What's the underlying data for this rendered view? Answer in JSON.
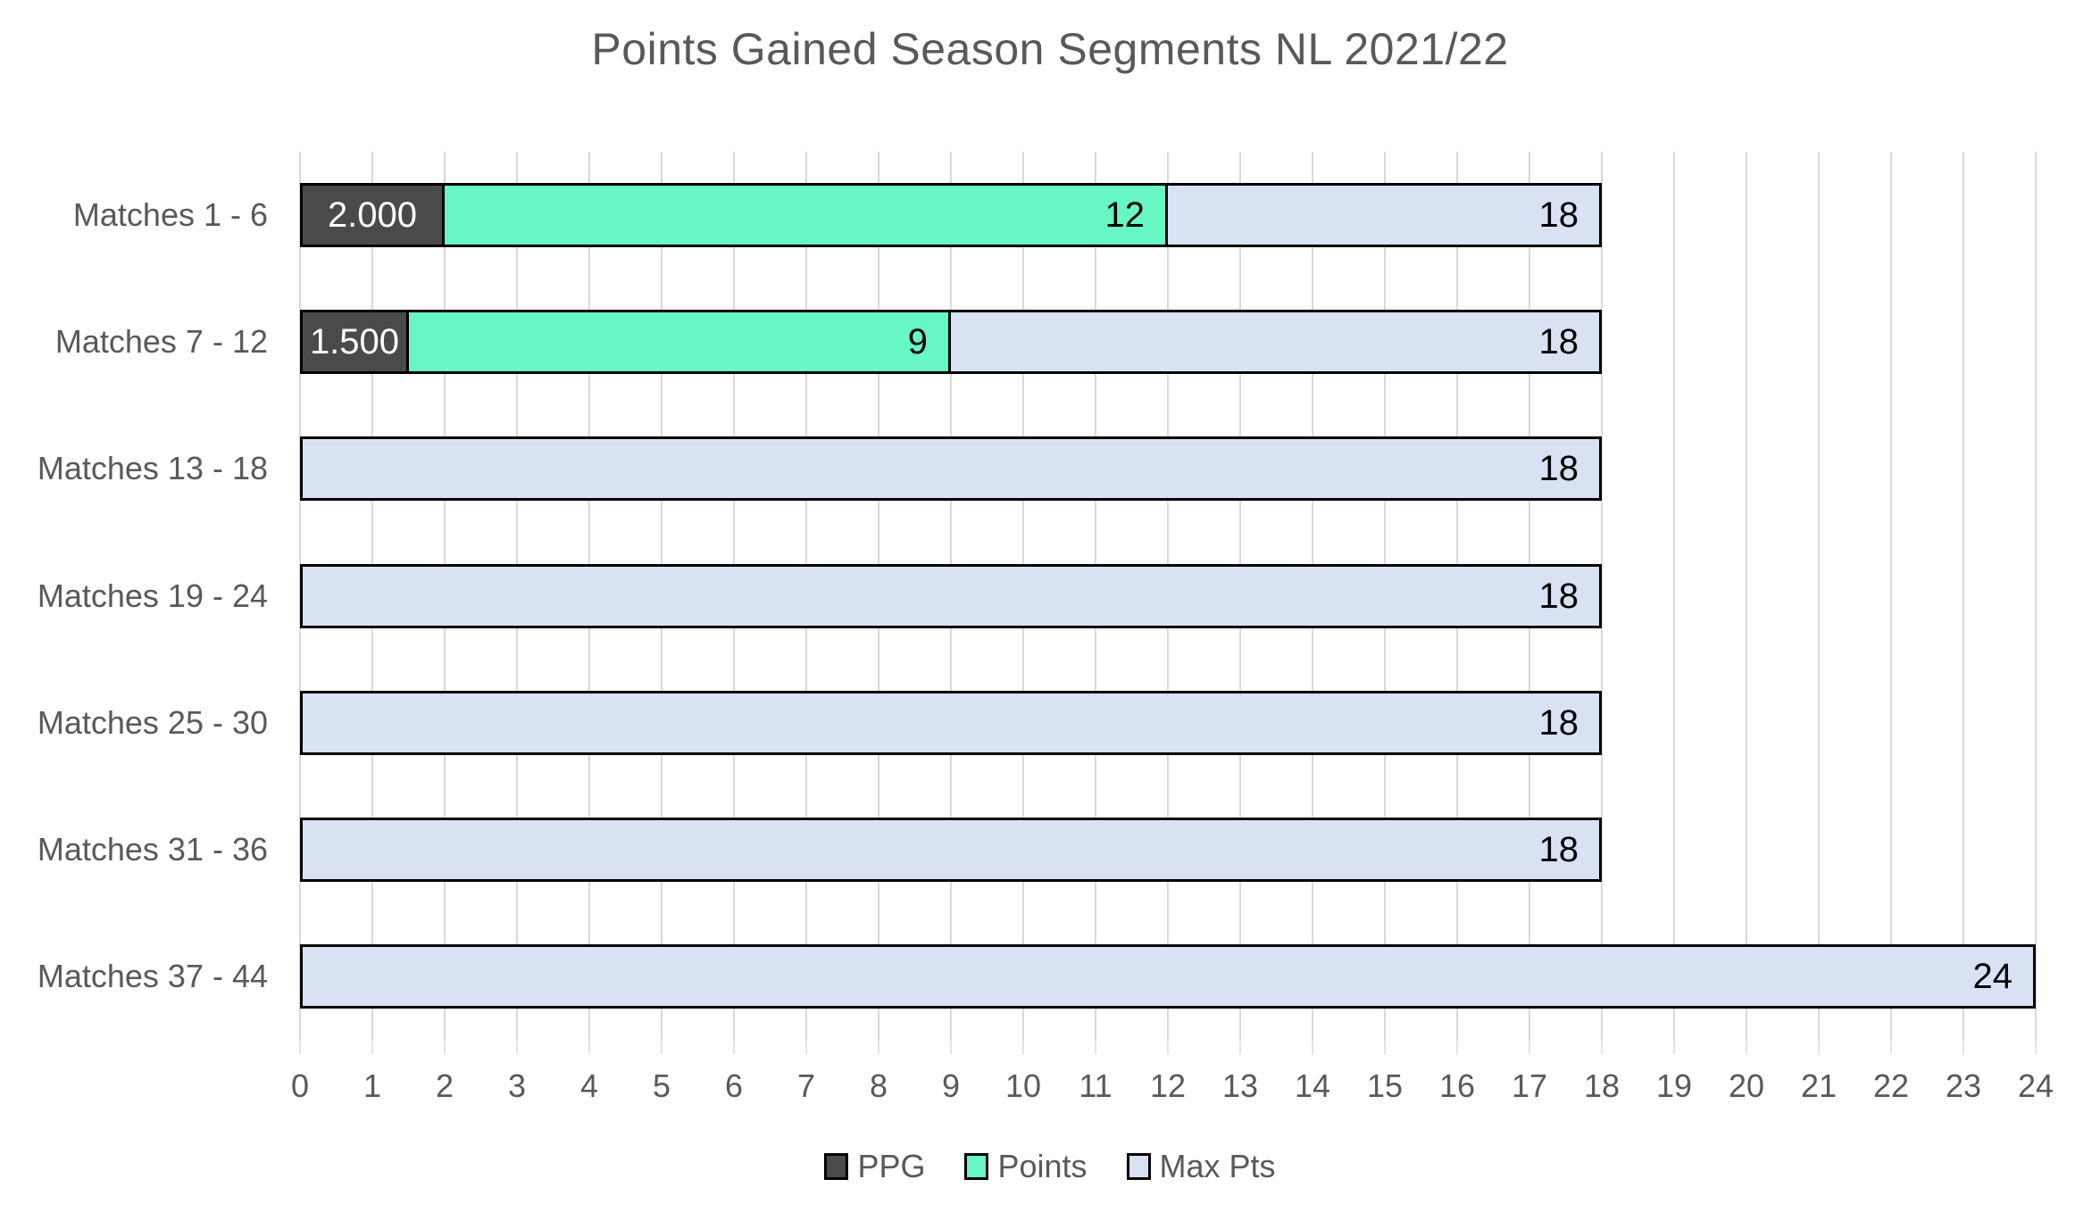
{
  "title": "Points Gained Season Segments NL 2021/22",
  "chart_data": {
    "type": "bar",
    "orientation": "horizontal",
    "title": "Points Gained Season Segments NL 2021/22",
    "categories": [
      "Matches 1 - 6",
      "Matches 7 - 12",
      "Matches 13 - 18",
      "Matches 19 - 24",
      "Matches 25 - 30",
      "Matches 31 - 36",
      "Matches 37 - 44"
    ],
    "series": [
      {
        "name": "PPG",
        "color": "#4A4A4A",
        "label_color": "#FFFFFF",
        "label_align": "center",
        "values": [
          2.0,
          1.5,
          null,
          null,
          null,
          null,
          null
        ],
        "value_labels": [
          "2.000",
          "1.500",
          "",
          "",
          "",
          "",
          ""
        ]
      },
      {
        "name": "Points",
        "color": "#66F7C5",
        "label_color": "#000000",
        "label_align": "end",
        "values": [
          12,
          9,
          null,
          null,
          null,
          null,
          null
        ],
        "value_labels": [
          "12",
          "9",
          "",
          "",
          "",
          "",
          ""
        ]
      },
      {
        "name": "Max Pts",
        "color": "#D9E2F3",
        "label_color": "#000000",
        "label_align": "end",
        "values": [
          18,
          18,
          18,
          18,
          18,
          18,
          24
        ],
        "value_labels": [
          "18",
          "18",
          "18",
          "18",
          "18",
          "18",
          "24"
        ]
      }
    ],
    "xlabel": "",
    "ylabel": "",
    "xlim": [
      0,
      24
    ],
    "x_ticks": [
      "0",
      "1",
      "2",
      "3",
      "4",
      "5",
      "6",
      "7",
      "8",
      "9",
      "10",
      "11",
      "12",
      "13",
      "14",
      "15",
      "16",
      "17",
      "18",
      "19",
      "20",
      "21",
      "22",
      "23",
      "24"
    ],
    "grid": true,
    "legend_position": "bottom",
    "legend_entries": [
      "PPG",
      "Points",
      "Max Pts"
    ],
    "colors": {
      "text": "#595959",
      "gridline": "#D9D9D9",
      "bar_border": "#000000",
      "background": "#FFFFFF"
    }
  }
}
